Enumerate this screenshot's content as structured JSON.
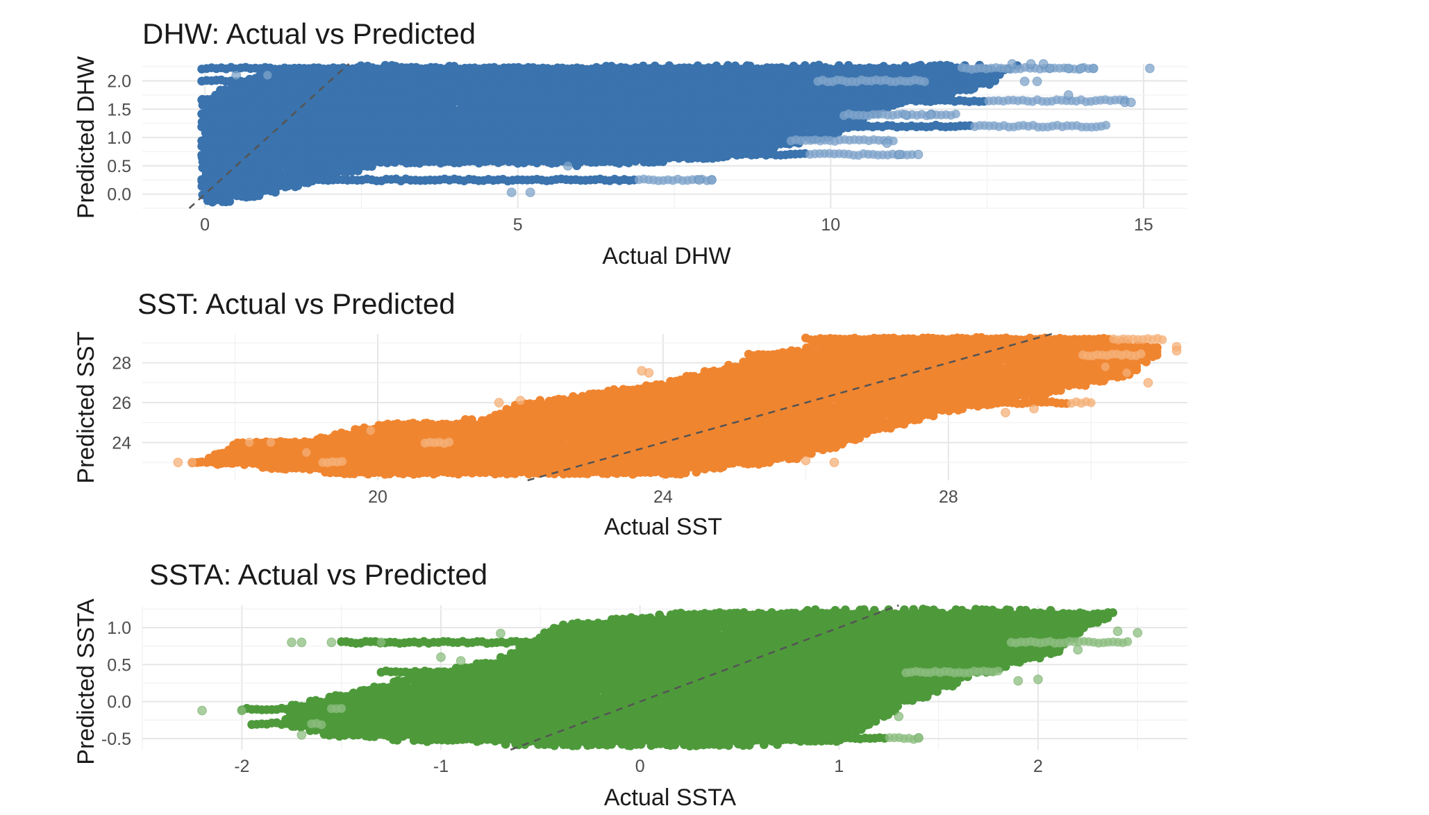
{
  "chart_data": [
    {
      "type": "scatter",
      "title": "DHW: Actual vs Predicted",
      "xlabel": "Actual DHW",
      "ylabel": "Predicted DHW",
      "xlim": [
        -1.0,
        15.7
      ],
      "ylim": [
        -0.25,
        2.3
      ],
      "x_ticks": [
        0,
        5,
        10,
        15
      ],
      "x_tick_labels": [
        "0",
        "5",
        "10",
        "15"
      ],
      "y_ticks": [
        0.0,
        0.5,
        1.0,
        1.5,
        2.0
      ],
      "y_tick_labels": [
        "0.0",
        "0.5",
        "1.0",
        "1.5",
        "2.0"
      ],
      "grid": true,
      "reference_line": "y = x (dashed)",
      "color": "#3a73ad",
      "series": [
        {
          "point_cloud": [
            [
              -0.05,
              1.7,
              0.1
            ],
            [
              1,
              2.2,
              0.0
            ],
            [
              2.5,
              2.28,
              0.0
            ],
            [
              5,
              2.25,
              -0.15
            ],
            [
              9,
              2.28,
              -0.1
            ],
            [
              13,
              2.28,
              1.0
            ],
            [
              12.5,
              1.9,
              1.2
            ],
            [
              11,
              1.55,
              1.1
            ],
            [
              10,
              1.0,
              0.9
            ],
            [
              8,
              0.6,
              0.6
            ],
            [
              6,
              0.5,
              0.4
            ],
            [
              3,
              0.55,
              0.1
            ],
            [
              1,
              0.0,
              -0.1
            ],
            [
              0.15,
              -0.2,
              -0.2
            ],
            [
              -0.05,
              -0.2,
              -0.2
            ]
          ],
          "horizontal_bands": [
            {
              "y": 2.22,
              "x_end": 14.2
            },
            {
              "y": 2.0,
              "x_end": 11.5
            },
            {
              "y": 1.65,
              "x_end": 14.7
            },
            {
              "y": 1.4,
              "x_end": 12.0
            },
            {
              "y": 1.2,
              "x_end": 14.4
            },
            {
              "y": 0.95,
              "x_end": 11.0
            },
            {
              "y": 0.7,
              "x_end": 11.3
            },
            {
              "y": 0.25,
              "x_end": 8.1
            }
          ],
          "sparse_points": [
            [
              13.5,
              2.22
            ],
            [
              13.8,
              2.22
            ],
            [
              14.0,
              2.22
            ],
            [
              14.2,
              2.22
            ],
            [
              15.1,
              2.22
            ],
            [
              13.2,
              2.3
            ],
            [
              13.4,
              2.3
            ],
            [
              12.9,
              2.3
            ],
            [
              13.1,
              1.99
            ],
            [
              13.3,
              1.99
            ],
            [
              13.8,
              1.75
            ],
            [
              14.7,
              1.62
            ],
            [
              14.8,
              1.62
            ],
            [
              11.2,
              1.4
            ],
            [
              11.6,
              1.4
            ],
            [
              11.4,
              0.7
            ],
            [
              11.1,
              0.7
            ],
            [
              10.9,
              0.9
            ],
            [
              8.1,
              0.25
            ],
            [
              7.9,
              0.25
            ],
            [
              5.8,
              0.5
            ],
            [
              5.2,
              0.03
            ],
            [
              4.9,
              0.03
            ],
            [
              1.0,
              2.1
            ],
            [
              0.5,
              2.1
            ]
          ]
        }
      ]
    },
    {
      "type": "scatter",
      "title": "SST: Actual vs Predicted",
      "xlabel": "Actual SST",
      "ylabel": "Predicted SST",
      "xlim": [
        16.7,
        31.35
      ],
      "ylim": [
        22.1,
        29.45
      ],
      "x_ticks": [
        20,
        24,
        28
      ],
      "x_tick_labels": [
        "20",
        "24",
        "28"
      ],
      "y_ticks": [
        24,
        26,
        28
      ],
      "y_tick_labels": [
        "24",
        "26",
        "28"
      ],
      "grid": true,
      "reference_line": "y = x (dashed)",
      "color": "#f08530",
      "series": [
        {
          "point_cloud": [
            [
              17.5,
              23.0,
              0.0
            ],
            [
              18.0,
              24.0,
              0.0
            ],
            [
              19.0,
              24.1,
              0.2
            ],
            [
              20.0,
              25.0,
              0.3
            ],
            [
              21.5,
              25.2,
              0.5
            ],
            [
              22.0,
              26.0,
              0.6
            ],
            [
              23.0,
              26.5,
              0.6
            ],
            [
              24.0,
              27.0,
              0.9
            ],
            [
              25.0,
              28.0,
              1.3
            ],
            [
              26.0,
              28.8,
              1.4
            ],
            [
              27.0,
              29.2,
              1.4
            ],
            [
              29.0,
              29.3,
              1.4
            ],
            [
              30.9,
              29.0,
              1.4
            ],
            [
              31.0,
              28.5,
              1.4
            ],
            [
              30.5,
              27.3,
              1.3
            ],
            [
              29.5,
              26.5,
              1.2
            ],
            [
              28.0,
              25.5,
              1.1
            ],
            [
              27.0,
              24.5,
              0.8
            ],
            [
              26.0,
              23.2,
              0.4
            ],
            [
              24.0,
              22.3,
              0.0
            ],
            [
              20.0,
              22.3,
              0.0
            ],
            [
              18.0,
              22.8,
              0.0
            ]
          ],
          "horizontal_bands": [
            {
              "y": 23.0,
              "x_start": 17.4,
              "x_end": 19.5
            },
            {
              "y": 24.0,
              "x_start": 18.3,
              "x_end": 21.0
            },
            {
              "y": 29.2,
              "x_start": 26.0,
              "x_end": 31.0
            },
            {
              "y": 28.4,
              "x_start": 25.2,
              "x_end": 30.7
            },
            {
              "y": 26.0,
              "x_start": 28.0,
              "x_end": 30.0
            }
          ],
          "sparse_points": [
            [
              17.2,
              23.0
            ],
            [
              17.4,
              23.0
            ],
            [
              18.2,
              24.0
            ],
            [
              18.5,
              24.0
            ],
            [
              19.0,
              23.5
            ],
            [
              19.9,
              24.6
            ],
            [
              22.0,
              26.1
            ],
            [
              21.7,
              26.0
            ],
            [
              23.8,
              27.5
            ],
            [
              23.7,
              27.6
            ],
            [
              31.2,
              28.8
            ],
            [
              31.2,
              28.6
            ],
            [
              30.5,
              27.5
            ],
            [
              30.8,
              27.0
            ],
            [
              30.2,
              27.8
            ],
            [
              26.4,
              23.0
            ],
            [
              26.0,
              23.1
            ],
            [
              29.2,
              25.7
            ],
            [
              28.8,
              25.5
            ]
          ]
        }
      ]
    },
    {
      "type": "scatter",
      "title": "SSTA: Actual vs Predicted",
      "xlabel": "Actual SSTA",
      "ylabel": "Predicted SSTA",
      "xlim": [
        -2.5,
        2.75
      ],
      "ylim": [
        -0.65,
        1.3
      ],
      "x_ticks": [
        -2,
        -1,
        0,
        1,
        2
      ],
      "x_tick_labels": [
        "-2",
        "-1",
        "0",
        "1",
        "2"
      ],
      "y_ticks": [
        -0.5,
        0.0,
        0.5,
        1.0
      ],
      "y_tick_labels": [
        "-0.5",
        "0.0",
        "0.5",
        "1.0"
      ],
      "grid": true,
      "reference_line": "y = x (dashed)",
      "color": "#4e9a3b",
      "series": [
        {
          "point_cloud": [
            [
              -1.75,
              -0.05,
              0.0
            ],
            [
              -1.2,
              0.3,
              0.0
            ],
            [
              -0.7,
              0.6,
              0.0
            ],
            [
              -0.5,
              0.9,
              0.0
            ],
            [
              -0.4,
              1.05,
              0.2
            ],
            [
              0.2,
              1.2,
              0.2
            ],
            [
              1.0,
              1.25,
              0.0
            ],
            [
              1.9,
              1.25,
              0.0
            ],
            [
              2.4,
              1.2,
              0.0
            ],
            [
              2.2,
              0.9,
              0.0
            ],
            [
              2.1,
              0.65,
              0.0
            ],
            [
              1.7,
              0.35,
              0.0
            ],
            [
              1.3,
              -0.1,
              0.0
            ],
            [
              1.0,
              -0.55,
              0.0
            ],
            [
              0.5,
              -0.6,
              0.0
            ],
            [
              -0.5,
              -0.6,
              0.0
            ],
            [
              -1.0,
              -0.55,
              0.0
            ],
            [
              -1.5,
              -0.5,
              0.0
            ],
            [
              -1.8,
              -0.3,
              0.0
            ]
          ],
          "horizontal_bands": [
            {
              "y": 0.8,
              "x_start": -1.5,
              "x_end": 2.45
            },
            {
              "y": 0.4,
              "x_start": -1.3,
              "x_end": 1.8
            },
            {
              "y": -0.1,
              "x_start": -2.0,
              "x_end": -1.5
            },
            {
              "y": -0.3,
              "x_start": -1.95,
              "x_end": -1.6
            },
            {
              "y": -0.5,
              "x_start": 0.3,
              "x_end": 1.4
            }
          ],
          "sparse_points": [
            [
              -2.2,
              -0.12
            ],
            [
              -2.0,
              -0.12
            ],
            [
              -1.75,
              0.8
            ],
            [
              -1.7,
              0.8
            ],
            [
              -1.55,
              0.8
            ],
            [
              -1.3,
              0.8
            ],
            [
              -1.0,
              0.6
            ],
            [
              -0.9,
              0.55
            ],
            [
              -0.7,
              0.92
            ],
            [
              2.5,
              0.93
            ],
            [
              2.4,
              0.95
            ],
            [
              2.2,
              0.7
            ],
            [
              2.0,
              0.3
            ],
            [
              1.9,
              0.28
            ],
            [
              1.3,
              -0.2
            ],
            [
              1.4,
              -0.49
            ],
            [
              -1.7,
              -0.45
            ]
          ]
        }
      ]
    }
  ]
}
